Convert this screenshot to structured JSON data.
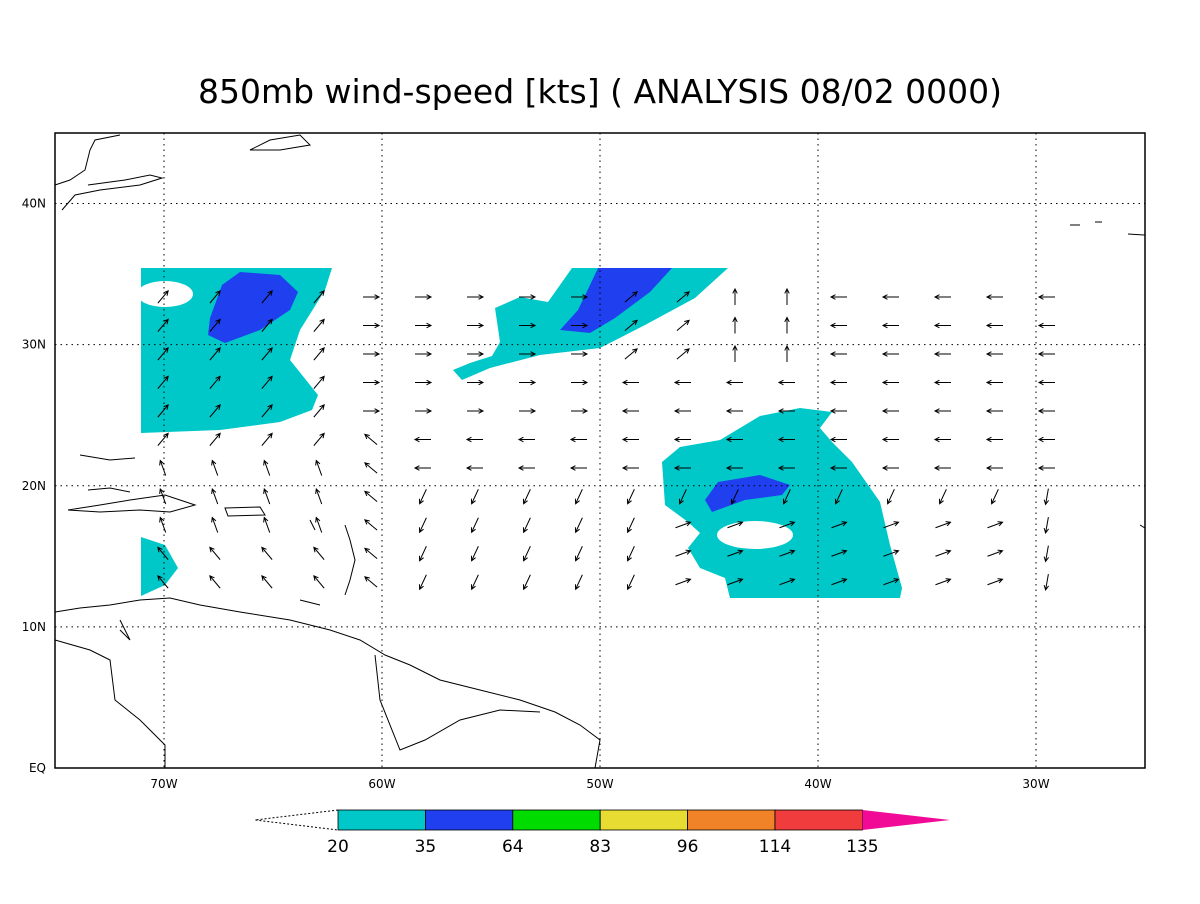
{
  "map": {
    "title": "850mb wind-speed [kts] ( ANALYSIS 08/02 0000)",
    "lon_range": [
      -75,
      -25
    ],
    "lat_range": [
      0,
      45
    ],
    "lon_ticks": [
      {
        "value": -70,
        "label": "70W"
      },
      {
        "value": -60,
        "label": "60W"
      },
      {
        "value": -50,
        "label": "50W"
      },
      {
        "value": -40,
        "label": "40W"
      },
      {
        "value": -30,
        "label": "30W"
      }
    ],
    "lat_ticks": [
      {
        "value": 0,
        "label": "EQ"
      },
      {
        "value": 10,
        "label": "10N"
      },
      {
        "value": 20,
        "label": "20N"
      },
      {
        "value": 30,
        "label": "30N"
      },
      {
        "value": 40,
        "label": "40N"
      }
    ]
  },
  "colorbar": {
    "levels": [
      20,
      35,
      64,
      83,
      96,
      114,
      135
    ],
    "colors": [
      "#00c8c8",
      "#2040f0",
      "#00dc00",
      "#e6dc32",
      "#f08228",
      "#f03c3c",
      "#f00a96"
    ]
  }
}
